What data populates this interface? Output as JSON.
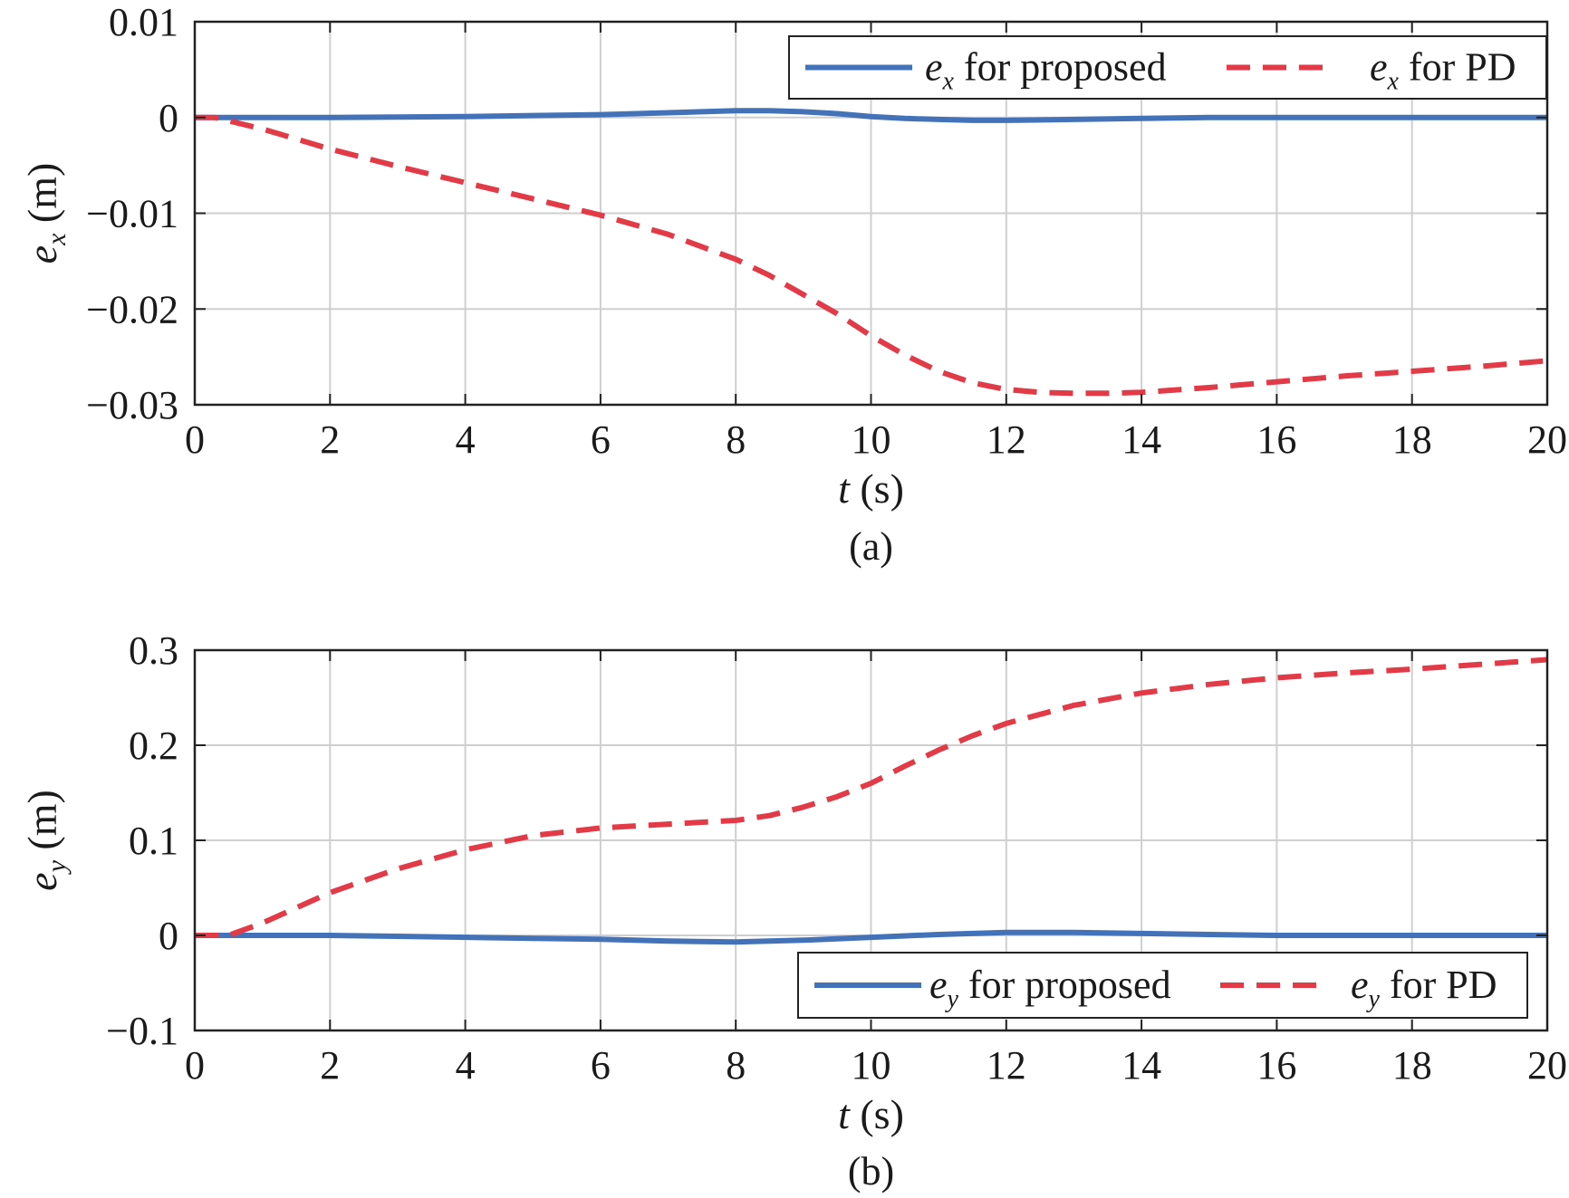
{
  "chart_data": [
    {
      "type": "line",
      "panel_label": "(a)",
      "xlabel": {
        "var": "t",
        "unit": "(s)"
      },
      "ylabel": {
        "var": "e",
        "sub": "x",
        "unit": "(m)"
      },
      "xlim": [
        0,
        20
      ],
      "ylim": [
        -0.03,
        0.01
      ],
      "xticks": [
        0,
        2,
        4,
        6,
        8,
        10,
        12,
        14,
        16,
        18,
        20
      ],
      "xtick_labels": [
        "0",
        "2",
        "4",
        "6",
        "8",
        "10",
        "12",
        "14",
        "16",
        "18",
        "20"
      ],
      "yticks": [
        0.01,
        0,
        -0.01,
        -0.02,
        -0.03
      ],
      "ytick_labels": [
        "0.01",
        "0",
        "−0.01",
        "−0.02",
        "−0.03"
      ],
      "grid": true,
      "legend_position": "top-right",
      "series": [
        {
          "name": {
            "var": "e",
            "sub": "x",
            "text": "for proposed"
          },
          "style": "solid",
          "color": "#4472b8",
          "x": [
            0,
            1,
            2,
            3,
            4,
            5,
            6,
            7,
            7.5,
            8,
            8.5,
            9,
            9.5,
            10,
            10.5,
            11,
            11.5,
            12,
            13,
            14,
            15,
            16,
            17,
            18,
            19,
            20
          ],
          "y": [
            0,
            0,
            0,
            5e-05,
            0.0001,
            0.0002,
            0.0003,
            0.0005,
            0.0006,
            0.0007,
            0.0007,
            0.0006,
            0.0004,
            0.0001,
            -0.0001,
            -0.0002,
            -0.0003,
            -0.0003,
            -0.0002,
            -0.0001,
            0,
            0,
            0,
            0,
            0,
            0
          ]
        },
        {
          "name": {
            "var": "e",
            "sub": "x",
            "text": "for PD"
          },
          "style": "dashed",
          "color": "#e23a46",
          "x": [
            0,
            0.3,
            1,
            2,
            3,
            4,
            5,
            6,
            7,
            8,
            8.5,
            9,
            9.5,
            10,
            10.5,
            11,
            11.5,
            12,
            12.5,
            13,
            13.5,
            14,
            15,
            16,
            17,
            18,
            19,
            20
          ],
          "y": [
            0,
            0,
            -0.0012,
            -0.0033,
            -0.0051,
            -0.0068,
            -0.0085,
            -0.0102,
            -0.0122,
            -0.0148,
            -0.0165,
            -0.0185,
            -0.0205,
            -0.0228,
            -0.0248,
            -0.0265,
            -0.0277,
            -0.0284,
            -0.0287,
            -0.0288,
            -0.0288,
            -0.0287,
            -0.0282,
            -0.0276,
            -0.027,
            -0.0265,
            -0.026,
            -0.0254
          ]
        }
      ]
    },
    {
      "type": "line",
      "panel_label": "(b)",
      "xlabel": {
        "var": "t",
        "unit": "(s)"
      },
      "ylabel": {
        "var": "e",
        "sub": "y",
        "unit": "(m)"
      },
      "xlim": [
        0,
        20
      ],
      "ylim": [
        -0.1,
        0.3
      ],
      "xticks": [
        0,
        2,
        4,
        6,
        8,
        10,
        12,
        14,
        16,
        18,
        20
      ],
      "xtick_labels": [
        "0",
        "2",
        "4",
        "6",
        "8",
        "10",
        "12",
        "14",
        "16",
        "18",
        "20"
      ],
      "yticks": [
        0.3,
        0.2,
        0.1,
        0,
        -0.1
      ],
      "ytick_labels": [
        "0.3",
        "0.2",
        "0.1",
        "0",
        "−0.1"
      ],
      "grid": true,
      "legend_position": "bottom-right",
      "series": [
        {
          "name": {
            "var": "e",
            "sub": "y",
            "text": "for proposed"
          },
          "style": "solid",
          "color": "#4472b8",
          "x": [
            0,
            1,
            2,
            3,
            4,
            5,
            6,
            7,
            8,
            8.5,
            9,
            10,
            11,
            12,
            13,
            14,
            15,
            16,
            17,
            18,
            19,
            20
          ],
          "y": [
            0,
            0,
            0,
            -0.001,
            -0.002,
            -0.003,
            -0.004,
            -0.006,
            -0.007,
            -0.006,
            -0.005,
            -0.002,
            0.001,
            0.003,
            0.003,
            0.002,
            0.001,
            0,
            0,
            0,
            0,
            0
          ]
        },
        {
          "name": {
            "var": "e",
            "sub": "y",
            "text": "for PD"
          },
          "style": "dashed",
          "color": "#e23a46",
          "x": [
            0,
            0.5,
            1,
            2,
            3,
            4,
            5,
            6,
            7,
            8,
            8.5,
            9,
            9.5,
            10,
            10.5,
            11,
            11.5,
            12,
            13,
            14,
            15,
            16,
            17,
            18,
            19,
            20
          ],
          "y": [
            0,
            0,
            0.013,
            0.045,
            0.07,
            0.09,
            0.105,
            0.113,
            0.117,
            0.121,
            0.126,
            0.135,
            0.146,
            0.16,
            0.178,
            0.195,
            0.21,
            0.223,
            0.242,
            0.255,
            0.264,
            0.271,
            0.276,
            0.28,
            0.285,
            0.29
          ]
        }
      ]
    }
  ]
}
